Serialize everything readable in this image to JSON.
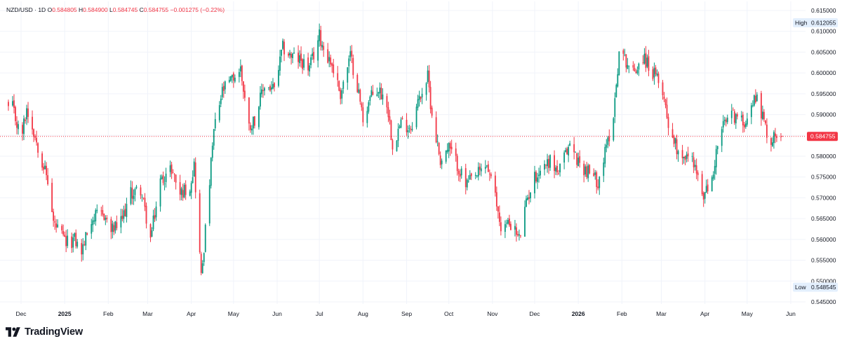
{
  "legend": {
    "symbol": "NZD/USD · 1D",
    "o_label": "O",
    "o": "0.584805",
    "h_label": "H",
    "h": "0.584900",
    "l_label": "L",
    "l": "0.584745",
    "c_label": "C",
    "c": "0.584755",
    "change": "−0.001275 (−0.22%)"
  },
  "brand": "TradingView",
  "colors": {
    "up": "#089981",
    "down": "#f23645",
    "last_price": "#f23645",
    "label_bg": "#e3effd",
    "text": "#131722"
  },
  "chart_data": {
    "type": "candlestick",
    "y_range": [
      0.5445,
      0.6155
    ],
    "y_ticks": [
      "0.615000",
      "0.610000",
      "0.605000",
      "0.600000",
      "0.595000",
      "0.590000",
      "0.585000",
      "0.580000",
      "0.575000",
      "0.570000",
      "0.565000",
      "0.560000",
      "0.555000",
      "0.550000",
      "0.545000"
    ],
    "x_labels": [
      "Dec",
      "2025",
      "Feb",
      "Mar",
      "Apr",
      "May",
      "Jun",
      "Jul",
      "Aug",
      "Sep",
      "Oct",
      "Nov",
      "Dec",
      "2026",
      "Feb",
      "Mar",
      "Apr",
      "May",
      "Jun"
    ],
    "high_label": "High",
    "high_value": "0.612055",
    "low_label": "Low",
    "low_value": "0.548545",
    "last_price_label": "0.584755",
    "anchors": [
      [
        "2024-11-25",
        0.5915
      ],
      [
        "2024-12-01",
        0.584
      ],
      [
        "2024-12-05",
        0.5915
      ],
      [
        "2024-12-10",
        0.586
      ],
      [
        "2024-12-16",
        0.579
      ],
      [
        "2024-12-20",
        0.574
      ],
      [
        "2024-12-24",
        0.564
      ],
      [
        "2025-01-02",
        0.559
      ],
      [
        "2025-01-08",
        0.56
      ],
      [
        "2025-01-13",
        0.557
      ],
      [
        "2025-01-20",
        0.565
      ],
      [
        "2025-01-29",
        0.566
      ],
      [
        "2025-02-03",
        0.562
      ],
      [
        "2025-02-10",
        0.564
      ],
      [
        "2025-02-17",
        0.571
      ],
      [
        "2025-02-24",
        0.572
      ],
      [
        "2025-03-03",
        0.56
      ],
      [
        "2025-03-10",
        0.574
      ],
      [
        "2025-03-18",
        0.577
      ],
      [
        "2025-03-24",
        0.571
      ],
      [
        "2025-03-31",
        0.573
      ],
      [
        "2025-04-03",
        0.578
      ],
      [
        "2025-04-08",
        0.551
      ],
      [
        "2025-04-11",
        0.562
      ],
      [
        "2025-04-17",
        0.586
      ],
      [
        "2025-04-23",
        0.5955
      ],
      [
        "2025-04-29",
        0.598
      ],
      [
        "2025-05-06",
        0.601
      ],
      [
        "2025-05-12",
        0.587
      ],
      [
        "2025-05-16",
        0.589
      ],
      [
        "2025-05-23",
        0.597
      ],
      [
        "2025-05-30",
        0.596
      ],
      [
        "2025-06-05",
        0.606
      ],
      [
        "2025-06-11",
        0.604
      ],
      [
        "2025-06-18",
        0.603
      ],
      [
        "2025-06-24",
        0.601
      ],
      [
        "2025-07-01",
        0.609
      ],
      [
        "2025-07-04",
        0.606
      ],
      [
        "2025-07-10",
        0.602
      ],
      [
        "2025-07-16",
        0.595
      ],
      [
        "2025-07-23",
        0.604
      ],
      [
        "2025-07-28",
        0.597
      ],
      [
        "2025-08-01",
        0.589
      ],
      [
        "2025-08-06",
        0.594
      ],
      [
        "2025-08-12",
        0.596
      ],
      [
        "2025-08-18",
        0.593
      ],
      [
        "2025-08-22",
        0.583
      ],
      [
        "2025-08-28",
        0.588
      ],
      [
        "2025-09-04",
        0.587
      ],
      [
        "2025-09-10",
        0.594
      ],
      [
        "2025-09-16",
        0.599
      ],
      [
        "2025-09-19",
        0.59
      ],
      [
        "2025-09-25",
        0.579
      ],
      [
        "2025-10-01",
        0.582
      ],
      [
        "2025-10-07",
        0.578
      ],
      [
        "2025-10-13",
        0.573
      ],
      [
        "2025-10-20",
        0.575
      ],
      [
        "2025-10-28",
        0.578
      ],
      [
        "2025-11-03",
        0.57
      ],
      [
        "2025-11-07",
        0.563
      ],
      [
        "2025-11-14",
        0.564
      ],
      [
        "2025-11-20",
        0.56
      ],
      [
        "2025-11-26",
        0.57
      ],
      [
        "2025-12-01",
        0.575
      ],
      [
        "2025-12-08",
        0.578
      ],
      [
        "2025-12-12",
        0.579
      ],
      [
        "2025-12-18",
        0.576
      ],
      [
        "2025-12-26",
        0.583
      ],
      [
        "2026-01-02",
        0.578
      ],
      [
        "2026-01-09",
        0.576
      ],
      [
        "2026-01-15",
        0.574
      ],
      [
        "2026-01-21",
        0.582
      ],
      [
        "2026-01-26",
        0.59
      ],
      [
        "2026-01-30",
        0.605
      ],
      [
        "2026-02-04",
        0.603
      ],
      [
        "2026-02-09",
        0.6
      ],
      [
        "2026-02-16",
        0.604
      ],
      [
        "2026-02-23",
        0.6
      ],
      [
        "2026-03-02",
        0.596
      ],
      [
        "2026-03-06",
        0.588
      ],
      [
        "2026-03-12",
        0.582
      ],
      [
        "2026-03-18",
        0.58
      ],
      [
        "2026-03-24",
        0.579
      ],
      [
        "2026-03-30",
        0.57
      ],
      [
        "2026-04-06",
        0.574
      ],
      [
        "2026-04-10",
        0.583
      ],
      [
        "2026-04-15",
        0.588
      ],
      [
        "2026-04-21",
        0.59
      ],
      [
        "2026-04-28",
        0.588
      ],
      [
        "2026-05-04",
        0.592
      ],
      [
        "2026-05-08",
        0.595
      ],
      [
        "2026-05-13",
        0.588
      ],
      [
        "2026-05-18",
        0.583
      ],
      [
        "2026-05-22",
        0.586
      ],
      [
        "2026-05-26",
        0.58476
      ]
    ]
  }
}
